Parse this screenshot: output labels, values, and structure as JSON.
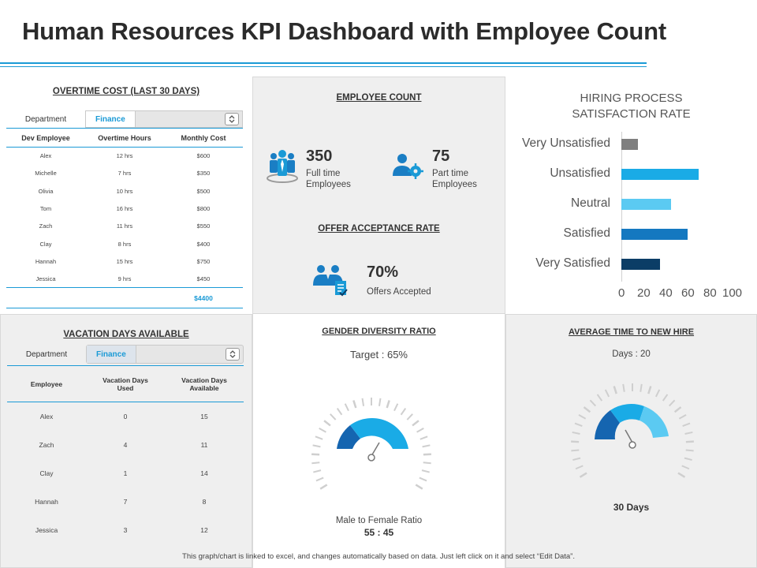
{
  "page": {
    "title": "Human Resources KPI Dashboard with Employee Count"
  },
  "overtime": {
    "title": "OVERTIME COST (LAST 30 DAYS)",
    "dept_label": "Department",
    "dept_value": "Finance",
    "headers": [
      "Dev Employee",
      "Overtime Hours",
      "Monthly Cost"
    ],
    "rows": [
      [
        "Alex",
        "12 hrs",
        "$600"
      ],
      [
        "Michelle",
        "7 hrs",
        "$350"
      ],
      [
        "Olivia",
        "10 hrs",
        "$500"
      ],
      [
        "Tom",
        "16 hrs",
        "$800"
      ],
      [
        "Zach",
        "11 hrs",
        "$550"
      ],
      [
        "Clay",
        "8 hrs",
        "$400"
      ],
      [
        "Hannah",
        "15 hrs",
        "$750"
      ],
      [
        "Jessica",
        "9 hrs",
        "$450"
      ]
    ],
    "total": "$4400"
  },
  "employee_count": {
    "title": "EMPLOYEE COUNT",
    "full_time": {
      "value": "350",
      "label1": "Full time",
      "label2": "Employees"
    },
    "part_time": {
      "value": "75",
      "label1": "Part time",
      "label2": "Employees"
    }
  },
  "offer": {
    "title": "OFFER ACCEPTANCE RATE",
    "value": "70%",
    "label": "Offers Accepted"
  },
  "hiring": {
    "title1": "HIRING PROCESS",
    "title2": "SATISFACTION RATE"
  },
  "chart_data": {
    "type": "bar",
    "orientation": "horizontal",
    "title": "HIRING PROCESS SATISFACTION RATE",
    "categories": [
      "Very Unsatisfied",
      "Unsatisfied",
      "Neutral",
      "Satisfied",
      "Very Satisfied"
    ],
    "values": [
      15,
      70,
      45,
      60,
      35
    ],
    "colors": [
      "#7f7f7f",
      "#1aabe6",
      "#5bcaf2",
      "#1478c0",
      "#0b3d66"
    ],
    "xlim": [
      0,
      100
    ],
    "xticks": [
      "0",
      "20",
      "40",
      "60",
      "80",
      "100"
    ],
    "xlabel": "",
    "ylabel": ""
  },
  "vacation": {
    "title": "VACATION DAYS AVAILABLE",
    "dept_label": "Department",
    "dept_value": "Finance",
    "headers": [
      "Employee",
      "Vacation Days Used",
      "Vacation Days Available"
    ],
    "rows": [
      [
        "Alex",
        "0",
        "15"
      ],
      [
        "Zach",
        "4",
        "11"
      ],
      [
        "Clay",
        "1",
        "14"
      ],
      [
        "Hannah",
        "7",
        "8"
      ],
      [
        "Jessica",
        "3",
        "12"
      ]
    ]
  },
  "gender": {
    "title": "GENDER  DIVERSITY  RATIO",
    "target": "Target : 65%",
    "ratio_label": "Male to Female Ratio",
    "ratio_value": "55 : 45"
  },
  "hire_time": {
    "title": "AVERAGE TIME TO NEW HIRE",
    "days_label": "Days : 20",
    "days_value": "30 Days"
  },
  "colors": {
    "accent": "#1a9ad6",
    "dark_blue": "#1565b0",
    "light_blue": "#5bcaf2"
  },
  "footer": {
    "text": "This graph/chart is linked to excel, and changes automatically based on data. Just left click on it and select “Edit Data”."
  }
}
